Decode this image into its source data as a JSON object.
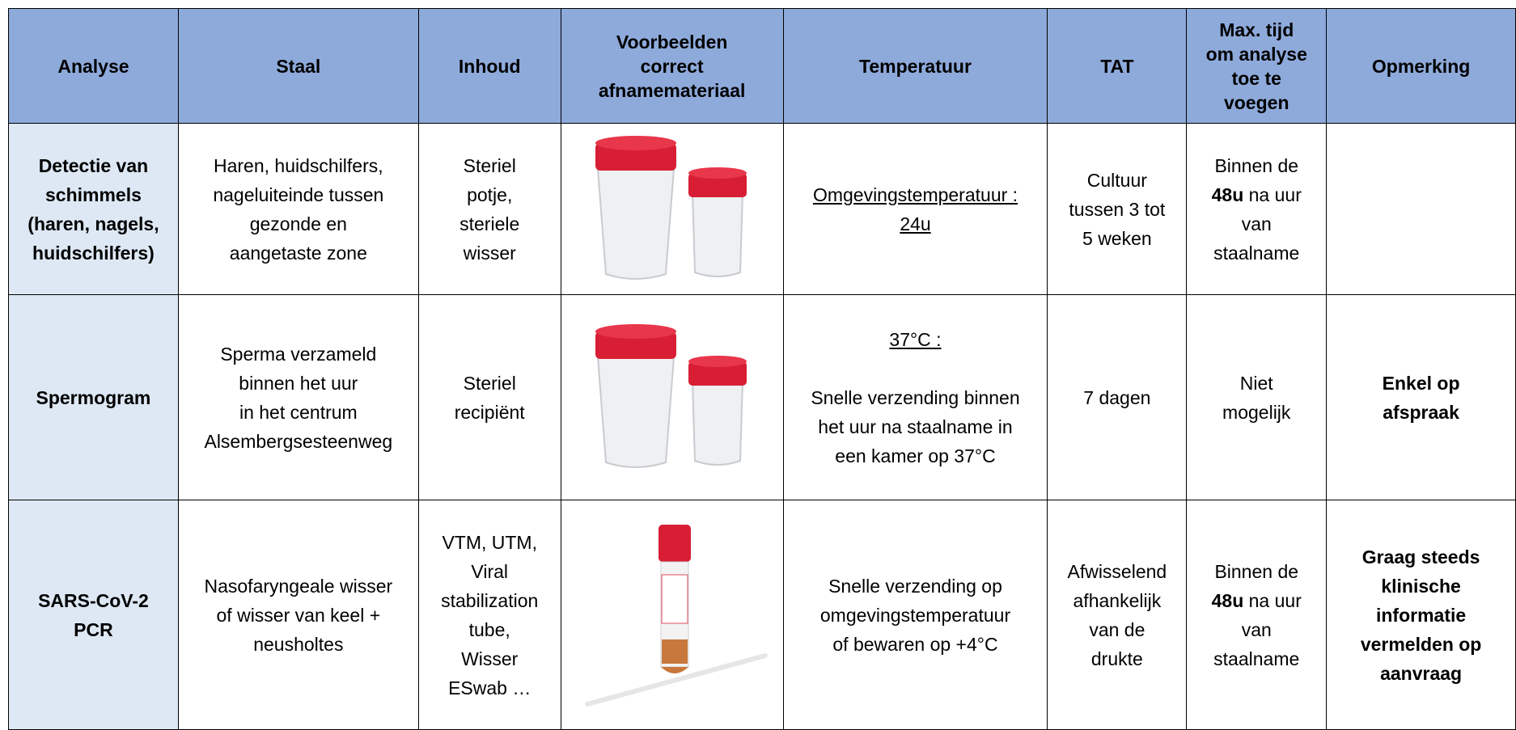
{
  "header": [
    [
      "Analyse"
    ],
    [
      "Staal"
    ],
    [
      "Inhoud"
    ],
    [
      "Voorbeelden",
      "correct",
      "afnamemateriaal"
    ],
    [
      "Temperatuur"
    ],
    [
      "TAT"
    ],
    [
      "Max. tijd",
      "om analyse",
      "toe te",
      "voegen"
    ],
    [
      "Opmerking"
    ]
  ],
  "rows": [
    [
      [
        [
          [
            {
              "t": "Detectie van"
            }
          ],
          [
            {
              "t": "schimmels"
            }
          ],
          [
            {
              "t": "(haren, nagels,"
            }
          ],
          [
            {
              "t": "huidschilfers)"
            }
          ]
        ]
      ],
      [
        [
          [
            {
              "t": "Haren, huidschilfers,"
            }
          ],
          [
            {
              "t": "nageluiteinde tussen"
            }
          ],
          [
            {
              "t": "gezonde en"
            }
          ],
          [
            {
              "t": "aangetaste zone"
            }
          ]
        ]
      ],
      [
        [
          [
            {
              "t": "Steriel"
            }
          ],
          [
            {
              "t": "potje,"
            }
          ],
          [
            {
              "t": "steriele"
            }
          ],
          [
            {
              "t": "wisser"
            }
          ]
        ]
      ],
      [],
      [
        [
          [
            {
              "t": "Omgevingstemperatuur :",
              "u": true
            }
          ],
          [
            {
              "t": "24u",
              "u": true
            }
          ]
        ]
      ],
      [
        [
          [
            {
              "t": "Cultuur"
            }
          ],
          [
            {
              "t": "tussen 3 tot"
            }
          ],
          [
            {
              "t": "5 weken"
            }
          ]
        ]
      ],
      [
        [
          [
            {
              "t": "Binnen de"
            }
          ],
          [
            {
              "t": "48u",
              "b": true
            },
            {
              "t": " na uur"
            }
          ],
          [
            {
              "t": "van"
            }
          ],
          [
            {
              "t": "staalname"
            }
          ]
        ]
      ],
      []
    ],
    [
      [
        [
          [
            {
              "t": "Spermogram"
            }
          ]
        ]
      ],
      [
        [
          [
            {
              "t": "Sperma verzameld"
            }
          ],
          [
            {
              "t": "binnen het uur"
            }
          ],
          [
            {
              "t": "in het centrum"
            }
          ],
          [
            {
              "t": "Alsembergsesteenweg"
            }
          ]
        ]
      ],
      [
        [
          [
            {
              "t": "Steriel"
            }
          ],
          [
            {
              "t": "recipiënt"
            }
          ]
        ]
      ],
      [],
      [
        [
          [
            {
              "t": "37°C :",
              "u": true
            }
          ]
        ],
        [
          [
            {
              "t": "Snelle verzending binnen"
            }
          ],
          [
            {
              "t": "het uur na staalname in"
            }
          ],
          [
            {
              "t": "een kamer op 37°C"
            }
          ]
        ]
      ],
      [
        [
          [
            {
              "t": "7 dagen"
            }
          ]
        ]
      ],
      [
        [
          [
            {
              "t": "Niet"
            }
          ],
          [
            {
              "t": "mogelijk"
            }
          ]
        ]
      ],
      [
        [
          [
            {
              "t": "Enkel op",
              "b": true
            }
          ],
          [
            {
              "t": "afspraak",
              "b": true
            }
          ]
        ]
      ]
    ],
    [
      [
        [
          [
            {
              "t": "SARS-CoV-2"
            }
          ],
          [
            {
              "t": "PCR"
            }
          ]
        ]
      ],
      [
        [
          [
            {
              "t": "Nasofaryngeale wisser"
            }
          ],
          [
            {
              "t": "of wisser van keel +"
            }
          ],
          [
            {
              "t": "neusholtes"
            }
          ]
        ]
      ],
      [
        [
          [
            {
              "t": "VTM, UTM,"
            }
          ],
          [
            {
              "t": "Viral"
            }
          ],
          [
            {
              "t": "stabilization"
            }
          ],
          [
            {
              "t": "tube,"
            }
          ],
          [
            {
              "t": "Wisser"
            }
          ],
          [
            {
              "t": "ESwab …"
            }
          ]
        ]
      ],
      [],
      [
        [
          [
            {
              "t": "Snelle verzending op"
            }
          ],
          [
            {
              "t": "omgevingstemperatuur"
            }
          ],
          [
            {
              "t": "of bewaren op +4°C"
            }
          ]
        ]
      ],
      [
        [
          [
            {
              "t": "Afwisselend"
            }
          ],
          [
            {
              "t": "afhankelijk"
            }
          ],
          [
            {
              "t": "van de"
            }
          ],
          [
            {
              "t": "drukte"
            }
          ]
        ]
      ],
      [
        [
          [
            {
              "t": "Binnen de"
            }
          ],
          [
            {
              "t": "48u",
              "b": true
            },
            {
              "t": " na uur"
            }
          ],
          [
            {
              "t": "van"
            }
          ],
          [
            {
              "t": "staalname"
            }
          ]
        ]
      ],
      [
        [
          [
            {
              "t": "Graag steeds",
              "b": true
            }
          ],
          [
            {
              "t": "klinische",
              "b": true
            }
          ],
          [
            {
              "t": "informatie",
              "b": true
            }
          ],
          [
            {
              "t": "vermelden op",
              "b": true
            }
          ],
          [
            {
              "t": "aanvraag",
              "b": true
            }
          ]
        ]
      ]
    ]
  ]
}
